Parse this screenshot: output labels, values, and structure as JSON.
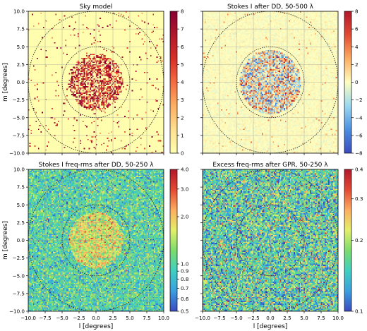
{
  "chart_data": [
    {
      "type": "heatmap",
      "title": "Sky model",
      "xlabel": "",
      "ylabel": "m [degrees]",
      "xlim": [
        -10,
        10
      ],
      "ylim": [
        -10,
        10
      ],
      "xticks": [
        "−10.0",
        "−7.5",
        "−5.0",
        "−2.5",
        "0.0",
        "2.5",
        "5.0",
        "7.5",
        "10.0"
      ],
      "yticks": [
        "10.0",
        "7.5",
        "5.0",
        "2.5",
        "0.0",
        "−2.5",
        "−5.0",
        "−7.5",
        "−10.0"
      ],
      "show_x_ticklabels": false,
      "show_y_ticklabels": true,
      "grid": true,
      "colorbar": {
        "scale": "linear",
        "min": 0,
        "max": 8,
        "ticks": [
          0,
          1,
          2,
          3,
          4,
          5,
          6,
          7,
          8
        ],
        "tick_labels": [
          "0",
          "1",
          "2",
          "3",
          "4",
          "5",
          "6",
          "7",
          "8"
        ],
        "colors": [
          "#ffffb0",
          "#fee090",
          "#fdae61",
          "#f46d43",
          "#d73027",
          "#b2182b",
          "#8b0034"
        ]
      },
      "circles_radius": [
        5,
        10
      ],
      "pattern": "sources",
      "seed": 11
    },
    {
      "type": "heatmap",
      "title": "Stokes I after DD, 50-500 λ",
      "xlabel": "",
      "ylabel": "",
      "xlim": [
        -10,
        10
      ],
      "ylim": [
        -10,
        10
      ],
      "xticks": [
        "−10.0",
        "−7.5",
        "−5.0",
        "−2.5",
        "0.0",
        "2.5",
        "5.0",
        "7.5",
        "10.0"
      ],
      "yticks": [
        "10.0",
        "7.5",
        "5.0",
        "2.5",
        "0.0",
        "−2.5",
        "−5.0",
        "−7.5",
        "−10.0"
      ],
      "show_x_ticklabels": false,
      "show_y_ticklabels": false,
      "grid": true,
      "colorbar": {
        "scale": "linear",
        "min": -8,
        "max": 8,
        "ticks": [
          -8,
          -6,
          -4,
          -2,
          0,
          2,
          4,
          6,
          8
        ],
        "tick_labels": [
          "−8",
          "−6",
          "−4",
          "−2",
          "0",
          "2",
          "4",
          "6",
          "8"
        ],
        "colors": [
          "#3b4cc0",
          "#4a90e2",
          "#9bd9f0",
          "#ffffbf",
          "#fdae61",
          "#e34a33",
          "#b2182b"
        ]
      },
      "circles_radius": [
        5,
        10
      ],
      "pattern": "residual",
      "seed": 23
    },
    {
      "type": "heatmap",
      "title": "Stokes I freq-rms after DD, 50-250 λ",
      "xlabel": "l [degrees]",
      "ylabel": "m [degrees]",
      "xlim": [
        -10,
        10
      ],
      "ylim": [
        -10,
        10
      ],
      "xticks": [
        "−10.0",
        "−7.5",
        "−5.0",
        "−2.5",
        "0.0",
        "2.5",
        "5.0",
        "7.5",
        "10.0"
      ],
      "yticks": [
        "10.0",
        "7.5",
        "5.0",
        "2.5",
        "0.0",
        "−2.5",
        "−5.0",
        "−7.5",
        "−10.0"
      ],
      "show_x_ticklabels": true,
      "show_y_ticklabels": true,
      "grid": true,
      "colorbar": {
        "scale": "log",
        "min": 0.5,
        "max": 4.0,
        "ticks": [
          0.5,
          0.6,
          0.7,
          0.8,
          0.9,
          1.0,
          2.0,
          3.0,
          4.0
        ],
        "tick_labels": [
          "0.5",
          "0.6",
          "0.7",
          "0.8",
          "0.9",
          "1.0",
          "2.0",
          "3.0",
          "4.0"
        ],
        "colors": [
          "#3b4cc0",
          "#3aa0e0",
          "#40d0c0",
          "#7ddc6c",
          "#e3f06a",
          "#fdae61",
          "#e34a33",
          "#b2182b"
        ]
      },
      "circles_radius": [
        5,
        10
      ],
      "pattern": "rms",
      "seed": 37
    },
    {
      "type": "heatmap",
      "title": "Excess freq-rms after GPR, 50-250 λ",
      "xlabel": "l [degrees]",
      "ylabel": "",
      "xlim": [
        -10,
        10
      ],
      "ylim": [
        -10,
        10
      ],
      "xticks": [
        "−10.0",
        "−7.5",
        "−5.0",
        "−2.5",
        "0.0",
        "2.5",
        "5.0",
        "7.5",
        "10.0"
      ],
      "yticks": [
        "10.0",
        "7.5",
        "5.0",
        "2.5",
        "0.0",
        "−2.5",
        "−5.0",
        "−7.5",
        "−10.0"
      ],
      "show_x_ticklabels": true,
      "show_y_ticklabels": false,
      "grid": true,
      "colorbar": {
        "scale": "log",
        "min": 0.1,
        "max": 0.4,
        "ticks": [
          0.1,
          0.2,
          0.3,
          0.4
        ],
        "tick_labels": [
          "0.1",
          "0.2",
          "0.3",
          "0.4"
        ],
        "colors": [
          "#3b4cc0",
          "#3aa0e0",
          "#40d0c0",
          "#7ddc6c",
          "#e3f06a",
          "#fdae61",
          "#e34a33",
          "#b2182b"
        ]
      },
      "circles_radius": [
        5,
        10
      ],
      "pattern": "excess",
      "seed": 53
    }
  ]
}
